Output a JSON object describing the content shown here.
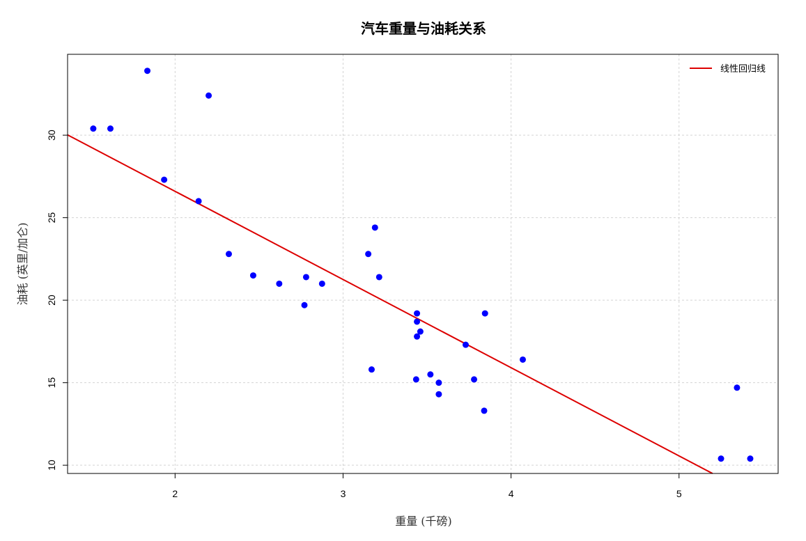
{
  "chart_data": {
    "type": "scatter",
    "title": "汽车重量与油耗关系",
    "xlabel": "重量 (千磅)",
    "ylabel": "油耗 (英里/加仑)",
    "xlim": [
      1.36,
      5.59
    ],
    "ylim": [
      9.5,
      34.9
    ],
    "xticks": [
      2,
      3,
      4,
      5
    ],
    "yticks": [
      10,
      15,
      20,
      25,
      30
    ],
    "grid": true,
    "legend_position": "top-right",
    "point_color": "#0000ff",
    "line_color": "#dd0000",
    "points": [
      {
        "x": 1.513,
        "y": 30.4
      },
      {
        "x": 1.615,
        "y": 30.4
      },
      {
        "x": 1.835,
        "y": 33.9
      },
      {
        "x": 1.935,
        "y": 27.3
      },
      {
        "x": 2.14,
        "y": 26.0
      },
      {
        "x": 2.2,
        "y": 32.4
      },
      {
        "x": 2.32,
        "y": 22.8
      },
      {
        "x": 2.465,
        "y": 21.5
      },
      {
        "x": 2.62,
        "y": 21.0
      },
      {
        "x": 2.77,
        "y": 19.7
      },
      {
        "x": 2.78,
        "y": 21.4
      },
      {
        "x": 2.875,
        "y": 21.0
      },
      {
        "x": 3.15,
        "y": 22.8
      },
      {
        "x": 3.17,
        "y": 15.8
      },
      {
        "x": 3.19,
        "y": 24.4
      },
      {
        "x": 3.215,
        "y": 21.4
      },
      {
        "x": 3.435,
        "y": 15.2
      },
      {
        "x": 3.44,
        "y": 18.7
      },
      {
        "x": 3.44,
        "y": 19.2
      },
      {
        "x": 3.44,
        "y": 17.8
      },
      {
        "x": 3.46,
        "y": 18.1
      },
      {
        "x": 3.52,
        "y": 15.5
      },
      {
        "x": 3.57,
        "y": 14.3
      },
      {
        "x": 3.57,
        "y": 15.0
      },
      {
        "x": 3.73,
        "y": 17.3
      },
      {
        "x": 3.78,
        "y": 15.2
      },
      {
        "x": 3.84,
        "y": 13.3
      },
      {
        "x": 3.845,
        "y": 19.2
      },
      {
        "x": 4.07,
        "y": 16.4
      },
      {
        "x": 5.25,
        "y": 10.4
      },
      {
        "x": 5.345,
        "y": 14.7
      },
      {
        "x": 5.424,
        "y": 10.4
      }
    ],
    "series": [
      {
        "name": "线性回归线",
        "type": "line",
        "intercept": 37.285,
        "slope": -5.344
      }
    ]
  }
}
